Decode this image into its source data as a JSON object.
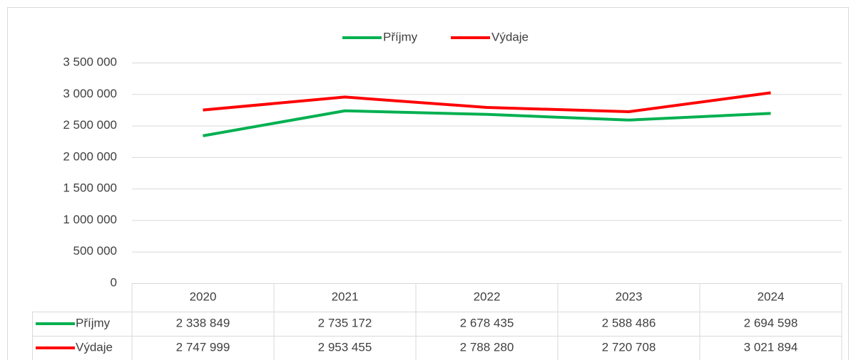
{
  "chart_data": {
    "type": "line",
    "categories": [
      "2020",
      "2021",
      "2022",
      "2023",
      "2024"
    ],
    "series": [
      {
        "name": "Příjmy",
        "color": "#00b050",
        "values": [
          2338849,
          2735172,
          2678435,
          2588486,
          2694598
        ],
        "value_labels": [
          "2 338 849",
          "2 735 172",
          "2 678 435",
          "2 588 486",
          "2 694 598"
        ]
      },
      {
        "name": "Výdaje",
        "color": "#ff0000",
        "values": [
          2747999,
          2953455,
          2788280,
          2720708,
          3021894
        ],
        "value_labels": [
          "2 747 999",
          "2 953 455",
          "2 788 280",
          "2 720 708",
          "3 021 894"
        ]
      }
    ],
    "ylim": [
      0,
      3500000
    ],
    "yticks": [
      0,
      {
        "value": 500000,
        "label": "500 000"
      },
      {
        "value": 1000000,
        "label": "1 000 000"
      },
      {
        "value": 1500000,
        "label": "1 500 000"
      },
      {
        "value": 2000000,
        "label": "2 000 000"
      },
      {
        "value": 2500000,
        "label": "2 500 000"
      },
      {
        "value": 3000000,
        "label": "3 000 000"
      },
      {
        "value": 3500000,
        "label": "3 500 000"
      }
    ],
    "grid": true,
    "legend": "top",
    "data_table": true
  }
}
